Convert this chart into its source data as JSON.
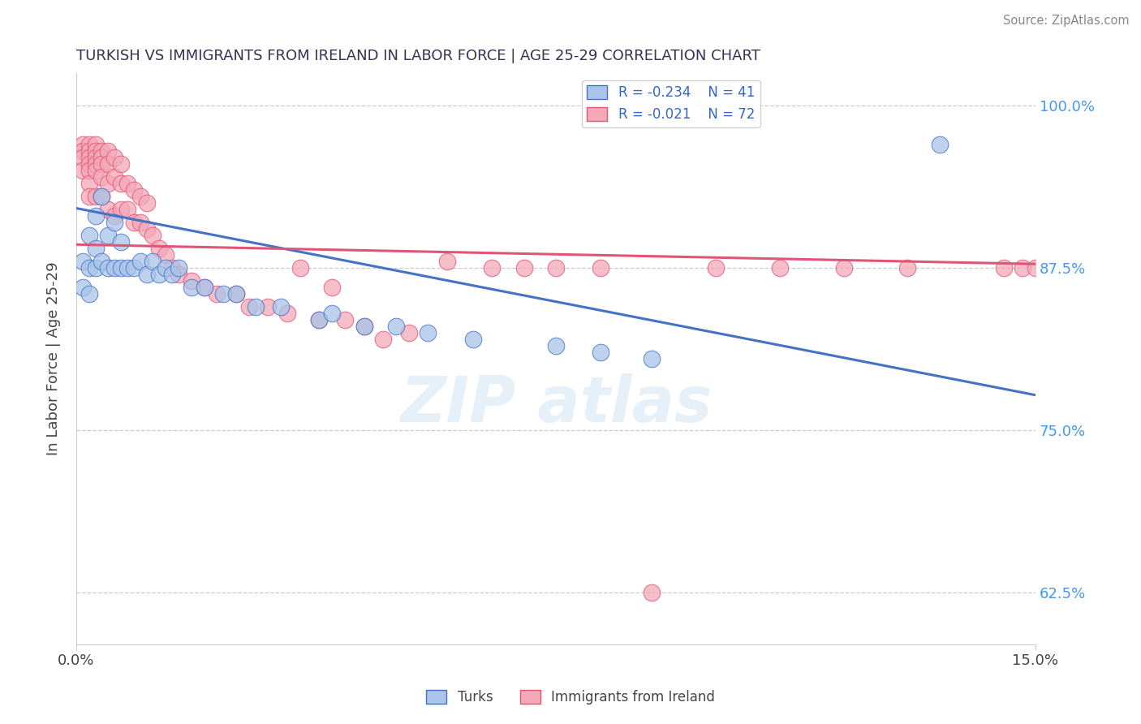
{
  "title": "TURKISH VS IMMIGRANTS FROM IRELAND IN LABOR FORCE | AGE 25-29 CORRELATION CHART",
  "source": "Source: ZipAtlas.com",
  "ylabel": "In Labor Force | Age 25-29",
  "xmin": 0.0,
  "xmax": 0.15,
  "ymin": 0.585,
  "ymax": 1.025,
  "legend_blue_r": -0.234,
  "legend_blue_n": 41,
  "legend_pink_r": -0.021,
  "legend_pink_n": 72,
  "blue_color": "#A8C4E8",
  "pink_color": "#F4A8B8",
  "blue_edge_color": "#4472C4",
  "pink_edge_color": "#E05575",
  "blue_line_color": "#4472C4",
  "pink_line_color": "#E05575",
  "turks_x": [
    0.001,
    0.001,
    0.002,
    0.002,
    0.002,
    0.003,
    0.003,
    0.003,
    0.004,
    0.004,
    0.005,
    0.005,
    0.006,
    0.006,
    0.007,
    0.007,
    0.008,
    0.009,
    0.01,
    0.011,
    0.012,
    0.013,
    0.014,
    0.015,
    0.016,
    0.018,
    0.02,
    0.023,
    0.025,
    0.028,
    0.032,
    0.038,
    0.04,
    0.045,
    0.05,
    0.055,
    0.062,
    0.075,
    0.082,
    0.09,
    0.135
  ],
  "turks_y": [
    0.88,
    0.86,
    0.9,
    0.875,
    0.855,
    0.915,
    0.89,
    0.875,
    0.93,
    0.88,
    0.9,
    0.875,
    0.91,
    0.875,
    0.895,
    0.875,
    0.875,
    0.875,
    0.88,
    0.87,
    0.88,
    0.87,
    0.875,
    0.87,
    0.875,
    0.86,
    0.86,
    0.855,
    0.855,
    0.845,
    0.845,
    0.835,
    0.84,
    0.83,
    0.83,
    0.825,
    0.82,
    0.815,
    0.81,
    0.805,
    0.97
  ],
  "ireland_x": [
    0.001,
    0.001,
    0.001,
    0.001,
    0.002,
    0.002,
    0.002,
    0.002,
    0.002,
    0.002,
    0.002,
    0.003,
    0.003,
    0.003,
    0.003,
    0.003,
    0.003,
    0.004,
    0.004,
    0.004,
    0.004,
    0.004,
    0.005,
    0.005,
    0.005,
    0.005,
    0.006,
    0.006,
    0.006,
    0.007,
    0.007,
    0.007,
    0.008,
    0.008,
    0.009,
    0.009,
    0.01,
    0.01,
    0.011,
    0.011,
    0.012,
    0.013,
    0.014,
    0.015,
    0.016,
    0.018,
    0.02,
    0.022,
    0.025,
    0.027,
    0.03,
    0.033,
    0.035,
    0.038,
    0.04,
    0.042,
    0.045,
    0.048,
    0.052,
    0.058,
    0.065,
    0.07,
    0.075,
    0.082,
    0.09,
    0.1,
    0.11,
    0.12,
    0.13,
    0.145,
    0.148,
    0.15
  ],
  "ireland_y": [
    0.97,
    0.965,
    0.96,
    0.95,
    0.97,
    0.965,
    0.96,
    0.955,
    0.95,
    0.94,
    0.93,
    0.97,
    0.965,
    0.96,
    0.955,
    0.95,
    0.93,
    0.965,
    0.96,
    0.955,
    0.945,
    0.93,
    0.965,
    0.955,
    0.94,
    0.92,
    0.96,
    0.945,
    0.915,
    0.955,
    0.94,
    0.92,
    0.94,
    0.92,
    0.935,
    0.91,
    0.93,
    0.91,
    0.925,
    0.905,
    0.9,
    0.89,
    0.885,
    0.875,
    0.87,
    0.865,
    0.86,
    0.855,
    0.855,
    0.845,
    0.845,
    0.84,
    0.875,
    0.835,
    0.86,
    0.835,
    0.83,
    0.82,
    0.825,
    0.88,
    0.875,
    0.875,
    0.875,
    0.875,
    0.625,
    0.875,
    0.875,
    0.875,
    0.875,
    0.875,
    0.875,
    0.875
  ],
  "blue_intercept": 0.921,
  "blue_slope": -0.96,
  "pink_intercept": 0.893,
  "pink_slope": -0.1
}
